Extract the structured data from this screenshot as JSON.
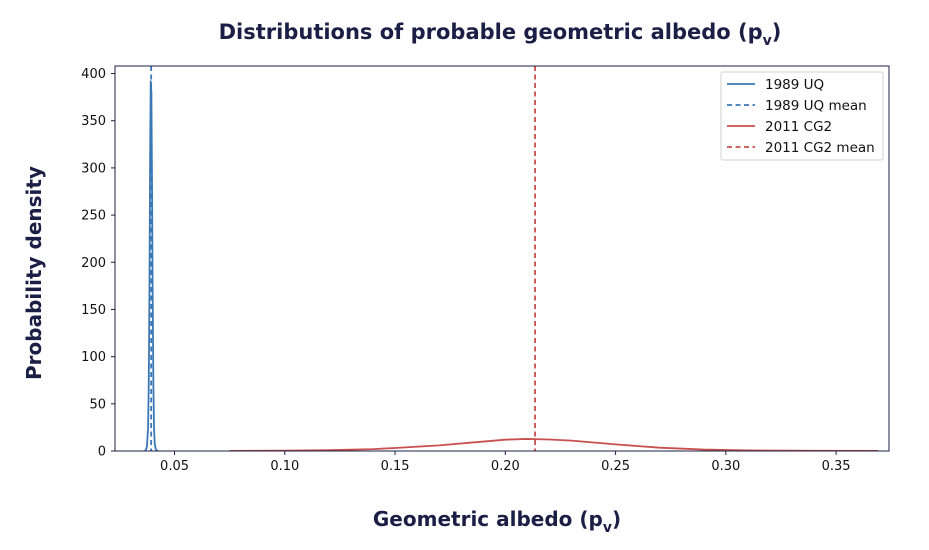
{
  "chart_data": {
    "type": "line",
    "title": "Distributions of probable geometric albedo (p",
    "title_sub": "v",
    "title_close": ")",
    "xlabel": "Geometric albedo (p",
    "xlabel_sub": "v",
    "xlabel_close": ")",
    "ylabel": "Probability density",
    "xlim": [
      0.023,
      0.374
    ],
    "ylim": [
      0,
      408
    ],
    "x_ticks": [
      0.05,
      0.1,
      0.15,
      0.2,
      0.25,
      0.3,
      0.35
    ],
    "x_tick_labels": [
      "0.05",
      "0.10",
      "0.15",
      "0.20",
      "0.25",
      "0.30",
      "0.35"
    ],
    "y_ticks": [
      0,
      50,
      100,
      150,
      200,
      250,
      300,
      350,
      400
    ],
    "y_tick_labels": [
      "0",
      "50",
      "100",
      "150",
      "200",
      "250",
      "300",
      "350",
      "400"
    ],
    "legend_position": "top-right",
    "grid": false,
    "series": [
      {
        "name": "1989 UQ",
        "style": "solid",
        "color": "#3a78b5",
        "x": [
          0.0365,
          0.037,
          0.0375,
          0.038,
          0.0383,
          0.0386,
          0.0389,
          0.0392,
          0.0395,
          0.0398,
          0.0401,
          0.0404,
          0.0407,
          0.041,
          0.0415,
          0.042,
          0.0425
        ],
        "y": [
          0,
          1,
          5,
          25,
          70,
          160,
          300,
          392,
          380,
          280,
          160,
          70,
          25,
          8,
          2,
          0.5,
          0
        ]
      },
      {
        "name": "1989 UQ mean",
        "style": "dashed",
        "color": "#3a78b5",
        "vline_x": 0.0394
      },
      {
        "name": "2011 CG2",
        "style": "solid",
        "color": "#c8514f",
        "x": [
          0.075,
          0.1,
          0.12,
          0.14,
          0.15,
          0.17,
          0.19,
          0.2,
          0.21,
          0.22,
          0.23,
          0.25,
          0.27,
          0.29,
          0.31,
          0.34,
          0.369
        ],
        "y": [
          0.1,
          0.4,
          0.9,
          2.0,
          3.2,
          6.0,
          10.0,
          12.0,
          12.8,
          12.2,
          11.0,
          7.0,
          3.5,
          1.5,
          0.6,
          0.2,
          0.05
        ]
      },
      {
        "name": "2011 CG2 mean",
        "style": "dashed",
        "color": "#c8514f",
        "vline_x": 0.2135
      }
    ]
  }
}
